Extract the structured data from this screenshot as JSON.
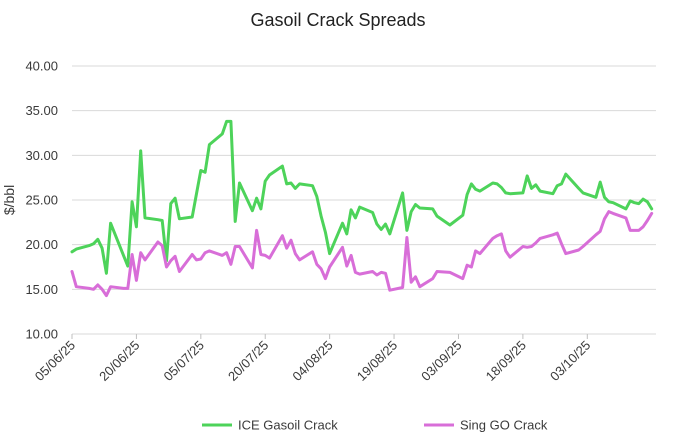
{
  "chart_data": {
    "type": "line",
    "title": "Gasoil Crack Spreads",
    "xlabel": "",
    "ylabel": "$/bbl",
    "ylim": [
      10,
      40
    ],
    "xlim": [
      "2025-06-05",
      "2025-10-19"
    ],
    "grid": "horizontal",
    "legend_position": "bottom",
    "y_ticks": [
      "10.00",
      "15.00",
      "20.00",
      "25.00",
      "30.00",
      "35.00",
      "40.00"
    ],
    "x_ticks": [
      "05/06/25",
      "20/06/25",
      "05/07/25",
      "20/07/25",
      "04/08/25",
      "19/08/25",
      "03/09/25",
      "18/09/25",
      "03/10/25"
    ],
    "series": [
      {
        "name": "ICE Gasoil Crack",
        "color": "#4dd35a",
        "points": [
          [
            "2025-06-05",
            19.2
          ],
          [
            "2025-06-06",
            19.5
          ],
          [
            "2025-06-09",
            19.9
          ],
          [
            "2025-06-10",
            20.1
          ],
          [
            "2025-06-11",
            20.6
          ],
          [
            "2025-06-12",
            19.6
          ],
          [
            "2025-06-13",
            16.8
          ],
          [
            "2025-06-14",
            22.4
          ],
          [
            "2025-06-17",
            18.8
          ],
          [
            "2025-06-18",
            17.6
          ],
          [
            "2025-06-19",
            24.8
          ],
          [
            "2025-06-20",
            22.0
          ],
          [
            "2025-06-21",
            30.5
          ],
          [
            "2025-06-22",
            23.0
          ],
          [
            "2025-06-25",
            22.8
          ],
          [
            "2025-06-26",
            22.7
          ],
          [
            "2025-06-27",
            18.2
          ],
          [
            "2025-06-28",
            24.6
          ],
          [
            "2025-06-29",
            25.2
          ],
          [
            "2025-06-30",
            22.9
          ],
          [
            "2025-07-03",
            23.1
          ],
          [
            "2025-07-04",
            25.7
          ],
          [
            "2025-07-05",
            28.3
          ],
          [
            "2025-07-06",
            28.1
          ],
          [
            "2025-07-07",
            31.2
          ],
          [
            "2025-07-10",
            32.4
          ],
          [
            "2025-07-11",
            33.8
          ],
          [
            "2025-07-12",
            33.8
          ],
          [
            "2025-07-13",
            22.6
          ],
          [
            "2025-07-14",
            26.9
          ],
          [
            "2025-07-17",
            23.8
          ],
          [
            "2025-07-18",
            25.2
          ],
          [
            "2025-07-19",
            24.0
          ],
          [
            "2025-07-20",
            27.1
          ],
          [
            "2025-07-21",
            27.8
          ],
          [
            "2025-07-24",
            28.8
          ],
          [
            "2025-07-25",
            26.8
          ],
          [
            "2025-07-26",
            26.9
          ],
          [
            "2025-07-27",
            26.3
          ],
          [
            "2025-07-28",
            26.8
          ],
          [
            "2025-07-31",
            26.6
          ],
          [
            "2025-08-01",
            25.4
          ],
          [
            "2025-08-02",
            23.2
          ],
          [
            "2025-08-03",
            21.4
          ],
          [
            "2025-08-04",
            19.0
          ],
          [
            "2025-08-07",
            22.4
          ],
          [
            "2025-08-08",
            21.2
          ],
          [
            "2025-08-09",
            23.9
          ],
          [
            "2025-08-10",
            23.0
          ],
          [
            "2025-08-11",
            24.2
          ],
          [
            "2025-08-14",
            23.6
          ],
          [
            "2025-08-15",
            22.3
          ],
          [
            "2025-08-16",
            21.7
          ],
          [
            "2025-08-17",
            22.3
          ],
          [
            "2025-08-18",
            21.2
          ],
          [
            "2025-08-21",
            25.8
          ],
          [
            "2025-08-22",
            21.6
          ],
          [
            "2025-08-23",
            23.7
          ],
          [
            "2025-08-24",
            24.5
          ],
          [
            "2025-08-25",
            24.1
          ],
          [
            "2025-08-28",
            24.0
          ],
          [
            "2025-08-29",
            23.2
          ],
          [
            "2025-09-01",
            22.2
          ],
          [
            "2025-09-04",
            23.3
          ],
          [
            "2025-09-05",
            25.6
          ],
          [
            "2025-09-06",
            26.8
          ],
          [
            "2025-09-07",
            26.2
          ],
          [
            "2025-09-08",
            26.0
          ],
          [
            "2025-09-11",
            26.9
          ],
          [
            "2025-09-12",
            26.8
          ],
          [
            "2025-09-13",
            26.4
          ],
          [
            "2025-09-14",
            25.8
          ],
          [
            "2025-09-15",
            25.7
          ],
          [
            "2025-09-18",
            25.8
          ],
          [
            "2025-09-19",
            27.7
          ],
          [
            "2025-09-20",
            26.3
          ],
          [
            "2025-09-21",
            26.7
          ],
          [
            "2025-09-22",
            26.0
          ],
          [
            "2025-09-25",
            25.7
          ],
          [
            "2025-09-26",
            26.6
          ],
          [
            "2025-09-27",
            26.8
          ],
          [
            "2025-09-28",
            27.9
          ],
          [
            "2025-10-01",
            26.3
          ],
          [
            "2025-10-02",
            25.8
          ],
          [
            "2025-10-05",
            25.3
          ],
          [
            "2025-10-06",
            27.0
          ],
          [
            "2025-10-07",
            25.3
          ],
          [
            "2025-10-08",
            24.8
          ],
          [
            "2025-10-09",
            24.7
          ],
          [
            "2025-10-12",
            24.0
          ],
          [
            "2025-10-13",
            24.9
          ],
          [
            "2025-10-14",
            24.7
          ],
          [
            "2025-10-15",
            24.6
          ],
          [
            "2025-10-16",
            25.1
          ],
          [
            "2025-10-17",
            24.8
          ],
          [
            "2025-10-18",
            24.0
          ]
        ]
      },
      {
        "name": "Sing GO Crack",
        "color": "#d86ed8",
        "points": [
          [
            "2025-06-05",
            17.0
          ],
          [
            "2025-06-06",
            15.3
          ],
          [
            "2025-06-09",
            15.1
          ],
          [
            "2025-06-10",
            15.0
          ],
          [
            "2025-06-11",
            15.5
          ],
          [
            "2025-06-12",
            15.0
          ],
          [
            "2025-06-13",
            14.3
          ],
          [
            "2025-06-14",
            15.3
          ],
          [
            "2025-06-17",
            15.1
          ],
          [
            "2025-06-18",
            15.1
          ],
          [
            "2025-06-19",
            18.9
          ],
          [
            "2025-06-20",
            16.0
          ],
          [
            "2025-06-21",
            19.1
          ],
          [
            "2025-06-22",
            18.3
          ],
          [
            "2025-06-25",
            20.3
          ],
          [
            "2025-06-26",
            19.9
          ],
          [
            "2025-06-27",
            17.5
          ],
          [
            "2025-06-28",
            18.2
          ],
          [
            "2025-06-29",
            18.7
          ],
          [
            "2025-06-30",
            17.0
          ],
          [
            "2025-07-03",
            18.9
          ],
          [
            "2025-07-04",
            18.3
          ],
          [
            "2025-07-05",
            18.4
          ],
          [
            "2025-07-06",
            19.1
          ],
          [
            "2025-07-07",
            19.3
          ],
          [
            "2025-07-10",
            18.8
          ],
          [
            "2025-07-11",
            19.1
          ],
          [
            "2025-07-12",
            17.8
          ],
          [
            "2025-07-13",
            19.8
          ],
          [
            "2025-07-14",
            19.8
          ],
          [
            "2025-07-17",
            17.4
          ],
          [
            "2025-07-18",
            21.6
          ],
          [
            "2025-07-19",
            18.9
          ],
          [
            "2025-07-20",
            18.8
          ],
          [
            "2025-07-21",
            18.5
          ],
          [
            "2025-07-24",
            21.0
          ],
          [
            "2025-07-25",
            19.6
          ],
          [
            "2025-07-26",
            20.5
          ],
          [
            "2025-07-27",
            19.0
          ],
          [
            "2025-07-28",
            18.3
          ],
          [
            "2025-07-31",
            19.2
          ],
          [
            "2025-08-01",
            17.8
          ],
          [
            "2025-08-02",
            17.3
          ],
          [
            "2025-08-03",
            16.2
          ],
          [
            "2025-08-04",
            17.5
          ],
          [
            "2025-08-07",
            19.7
          ],
          [
            "2025-08-08",
            17.6
          ],
          [
            "2025-08-09",
            18.8
          ],
          [
            "2025-08-10",
            16.9
          ],
          [
            "2025-08-11",
            16.7
          ],
          [
            "2025-08-14",
            17.0
          ],
          [
            "2025-08-15",
            16.6
          ],
          [
            "2025-08-16",
            16.9
          ],
          [
            "2025-08-17",
            16.8
          ],
          [
            "2025-08-18",
            14.9
          ],
          [
            "2025-08-21",
            15.2
          ],
          [
            "2025-08-22",
            20.8
          ],
          [
            "2025-08-23",
            15.8
          ],
          [
            "2025-08-24",
            16.4
          ],
          [
            "2025-08-25",
            15.3
          ],
          [
            "2025-08-28",
            16.2
          ],
          [
            "2025-08-29",
            17.0
          ],
          [
            "2025-09-01",
            16.9
          ],
          [
            "2025-09-04",
            16.2
          ],
          [
            "2025-09-05",
            17.7
          ],
          [
            "2025-09-06",
            17.5
          ],
          [
            "2025-09-07",
            19.3
          ],
          [
            "2025-09-08",
            19.0
          ],
          [
            "2025-09-11",
            20.7
          ],
          [
            "2025-09-12",
            21.0
          ],
          [
            "2025-09-13",
            21.2
          ],
          [
            "2025-09-14",
            19.3
          ],
          [
            "2025-09-15",
            18.6
          ],
          [
            "2025-09-18",
            19.8
          ],
          [
            "2025-09-19",
            19.7
          ],
          [
            "2025-09-20",
            19.8
          ],
          [
            "2025-09-21",
            20.2
          ],
          [
            "2025-09-22",
            20.7
          ],
          [
            "2025-09-25",
            21.1
          ],
          [
            "2025-09-26",
            21.3
          ],
          [
            "2025-09-27",
            20.1
          ],
          [
            "2025-09-28",
            19.0
          ],
          [
            "2025-10-01",
            19.4
          ],
          [
            "2025-10-02",
            19.8
          ],
          [
            "2025-10-05",
            21.1
          ],
          [
            "2025-10-06",
            21.5
          ],
          [
            "2025-10-07",
            22.9
          ],
          [
            "2025-10-08",
            23.7
          ],
          [
            "2025-10-09",
            23.5
          ],
          [
            "2025-10-12",
            23.0
          ],
          [
            "2025-10-13",
            21.6
          ],
          [
            "2025-10-14",
            21.6
          ],
          [
            "2025-10-15",
            21.6
          ],
          [
            "2025-10-16",
            22.0
          ],
          [
            "2025-10-17",
            22.7
          ],
          [
            "2025-10-18",
            23.5
          ]
        ]
      }
    ]
  }
}
